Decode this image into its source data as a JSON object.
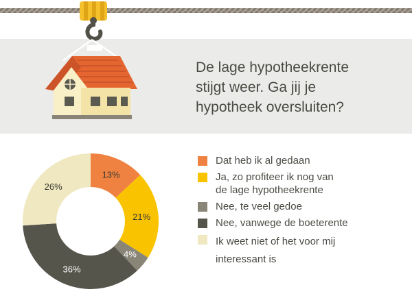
{
  "question": {
    "lines": [
      "De lage hypotheekrente",
      "stijgt weer. Ga jij je",
      "hypotheek oversluiten?"
    ]
  },
  "colors": {
    "background": "#ffffff",
    "band": "#ebebea",
    "text": "#4a4a44",
    "rope": "#9a9085",
    "crane_hook": "#535048",
    "crane_block": "#f4c12c",
    "roof": "#e4652f",
    "wall": "#faf0c8"
  },
  "icons": {
    "illustration": "house-on-crane-hook-icon"
  },
  "chart_data": {
    "type": "pie",
    "style": "donut",
    "categories": [
      "Dat heb ik al gedaan",
      "Ja, zo profiteer ik nog van de lage hypotheekrente",
      "Nee, te veel gedoe",
      "Nee, vanwege de boeterente",
      "Ik weet niet of het voor mij interessant is"
    ],
    "values": [
      13,
      21,
      4,
      36,
      26
    ],
    "value_labels": [
      "13%",
      "21%",
      "4%",
      "36%",
      "26%"
    ],
    "colors": [
      "#ef8240",
      "#f9c300",
      "#898577",
      "#56554c",
      "#efe8c1"
    ],
    "label_colors": [
      "#3a3a33",
      "#3a3a33",
      "#ffffff",
      "#ffffff",
      "#3a3a33"
    ],
    "legend_placement": "right",
    "legend": [
      {
        "color": "#ef8240",
        "lines": [
          "Dat heb ik al gedaan"
        ]
      },
      {
        "color": "#f9c300",
        "lines": [
          "Ja, zo profiteer ik nog van",
          "de lage hypotheekrente"
        ]
      },
      {
        "color": "#898577",
        "lines": [
          "Nee, te veel gedoe"
        ]
      },
      {
        "color": "#56554c",
        "lines": [
          "Nee, vanwege de boeterente"
        ]
      },
      {
        "color": "#efe8c1",
        "lines": [
          "Ik weet niet of het voor mij",
          "interessant is"
        ]
      }
    ]
  }
}
